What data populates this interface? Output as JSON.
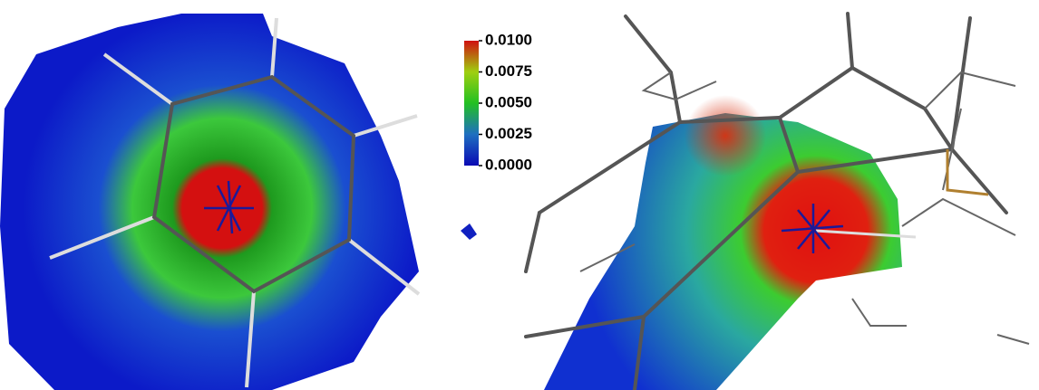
{
  "colorbar": {
    "range": [
      0,
      0.01
    ],
    "ticks": [
      {
        "value": 0.01,
        "label": "0.0100"
      },
      {
        "value": 0.0075,
        "label": "0.0075"
      },
      {
        "value": 0.005,
        "label": "0.0050"
      },
      {
        "value": 0.0025,
        "label": "0.0025"
      },
      {
        "value": 0,
        "label": "0.0000"
      }
    ],
    "colormap": [
      "#0a0ab4",
      "#1f6fc0",
      "#22c022",
      "#9fcf10",
      "#d01010"
    ]
  }
}
